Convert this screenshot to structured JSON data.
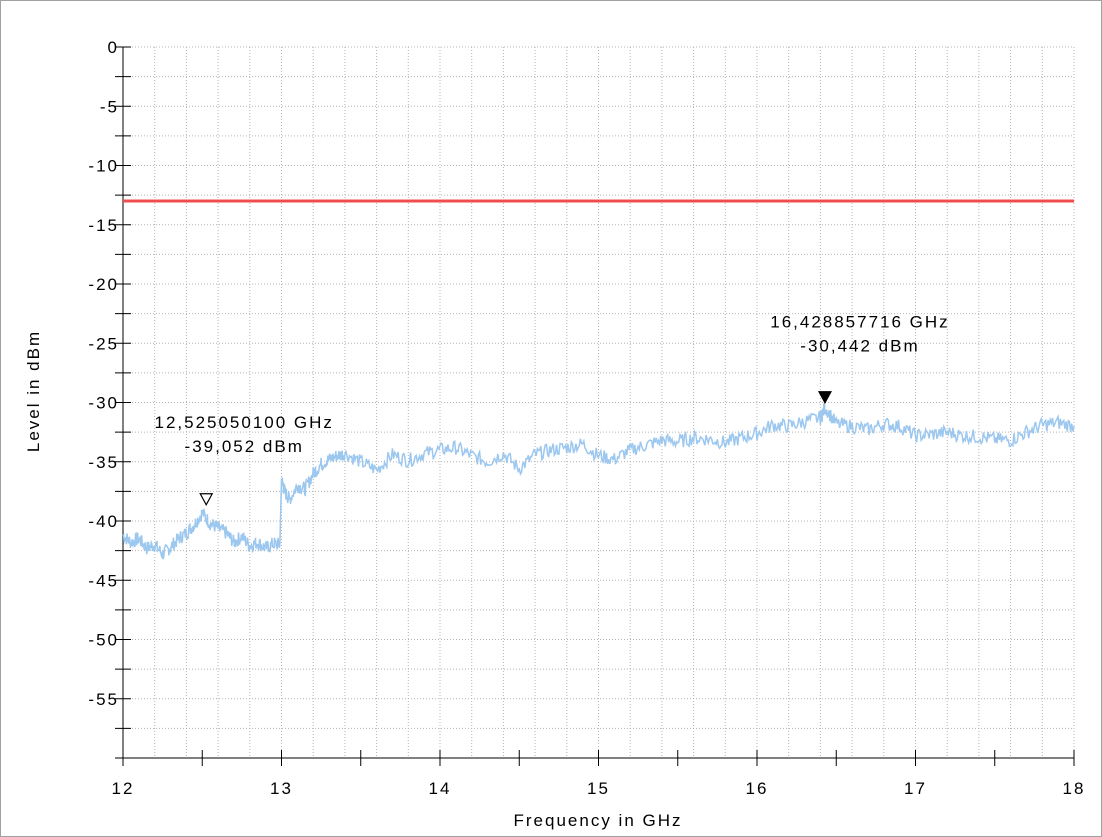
{
  "chart_data": {
    "type": "line",
    "xlabel": "Frequency in GHz",
    "ylabel": "Level in dBm",
    "xlim": [
      12,
      18
    ],
    "ylim": [
      -60,
      0
    ],
    "x_ticks": [
      "12",
      "13",
      "14",
      "15",
      "16",
      "17",
      "18"
    ],
    "y_ticks": [
      "0",
      "-5",
      "-10",
      "-15",
      "-20",
      "-25",
      "-30",
      "-35",
      "-40",
      "-45",
      "-50",
      "-55"
    ],
    "y_tick_values": [
      0,
      -5,
      -10,
      -15,
      -20,
      -25,
      -30,
      -35,
      -40,
      -45,
      -50,
      -55
    ],
    "grid": true,
    "series": [
      {
        "color": "#9cc7ef",
        "x": [
          12.0,
          12.05,
          12.1,
          12.15,
          12.2,
          12.25,
          12.3,
          12.35,
          12.4,
          12.45,
          12.5,
          12.55,
          12.6,
          12.65,
          12.7,
          12.75,
          12.8,
          12.85,
          12.9,
          12.95,
          12.99,
          13.0,
          13.02,
          13.05,
          13.1,
          13.15,
          13.2,
          13.25,
          13.3,
          13.35,
          13.4,
          13.5,
          13.6,
          13.7,
          13.8,
          13.9,
          14.0,
          14.1,
          14.2,
          14.3,
          14.4,
          14.5,
          14.6,
          14.7,
          14.8,
          14.9,
          15.0,
          15.1,
          15.2,
          15.3,
          15.4,
          15.5,
          15.6,
          15.7,
          15.8,
          15.9,
          16.0,
          16.1,
          16.2,
          16.3,
          16.4,
          16.43,
          16.5,
          16.6,
          16.7,
          16.8,
          16.9,
          17.0,
          17.1,
          17.2,
          17.3,
          17.4,
          17.5,
          17.6,
          17.7,
          17.8,
          17.9,
          18.0
        ],
        "y": [
          -41.2,
          -41.8,
          -41.5,
          -42.3,
          -42.0,
          -42.8,
          -42.2,
          -41.5,
          -41.0,
          -40.3,
          -39.3,
          -40.2,
          -40.6,
          -41.0,
          -41.8,
          -41.3,
          -42.1,
          -41.8,
          -42.3,
          -41.9,
          -42.0,
          -36.5,
          -37.5,
          -38.2,
          -37.0,
          -37.3,
          -36.0,
          -35.2,
          -34.8,
          -34.5,
          -34.3,
          -35.0,
          -35.7,
          -34.4,
          -34.9,
          -34.3,
          -34.0,
          -33.8,
          -34.5,
          -35.0,
          -34.3,
          -35.6,
          -34.4,
          -34.0,
          -33.8,
          -33.5,
          -34.5,
          -34.8,
          -34.0,
          -33.6,
          -33.2,
          -33.3,
          -33.0,
          -33.1,
          -33.4,
          -33.0,
          -32.6,
          -31.9,
          -32.0,
          -31.6,
          -31.3,
          -30.4,
          -31.8,
          -32.0,
          -32.3,
          -31.8,
          -32.0,
          -32.8,
          -32.7,
          -32.5,
          -32.8,
          -32.9,
          -33.1,
          -33.2,
          -32.5,
          -31.9,
          -31.7,
          -32.0
        ]
      }
    ],
    "limit_line": {
      "y": -13,
      "color": "#f04d4d"
    },
    "markers": [
      {
        "x": 12.52505,
        "y": -39.052,
        "filled": false,
        "label_freq": "12,525050100 GHz",
        "label_level": "-39,052 dBm"
      },
      {
        "x": 16.428857716,
        "y": -30.442,
        "filled": true,
        "label_freq": "16,428857716 GHz",
        "label_level": "-30,442 dBm"
      }
    ]
  }
}
